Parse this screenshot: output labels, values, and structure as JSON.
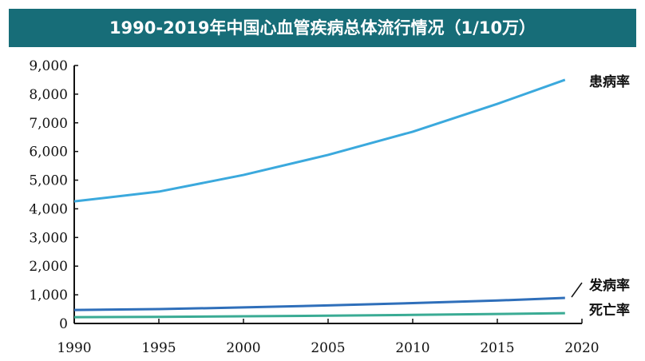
{
  "chart_data": {
    "type": "line",
    "title": "1990-2019年中国心血管疾病总体流行情况（1/10万）",
    "xlabel": "",
    "ylabel": "",
    "xlim": [
      1990,
      2020
    ],
    "ylim": [
      0,
      9000
    ],
    "xticks": [
      "1990",
      "1995",
      "2000",
      "2005",
      "2010",
      "2015",
      "2020"
    ],
    "yticks": [
      "0",
      "1,000",
      "2,000",
      "3,000",
      "4,000",
      "5,000",
      "6,000",
      "7,000",
      "8,000",
      "9,000"
    ],
    "grid": false,
    "x": [
      1990,
      1995,
      2000,
      2005,
      2010,
      2015,
      2019
    ],
    "series": [
      {
        "name": "患病率",
        "color": "#3ba9dd",
        "values": [
          4260,
          4600,
          5180,
          5880,
          6690,
          7660,
          8500
        ]
      },
      {
        "name": "发病率",
        "color": "#2f6fba",
        "values": [
          470,
          500,
          560,
          630,
          710,
          800,
          890
        ]
      },
      {
        "name": "死亡率",
        "color": "#3aab94",
        "values": [
          220,
          230,
          250,
          270,
          300,
          330,
          360
        ]
      }
    ]
  }
}
